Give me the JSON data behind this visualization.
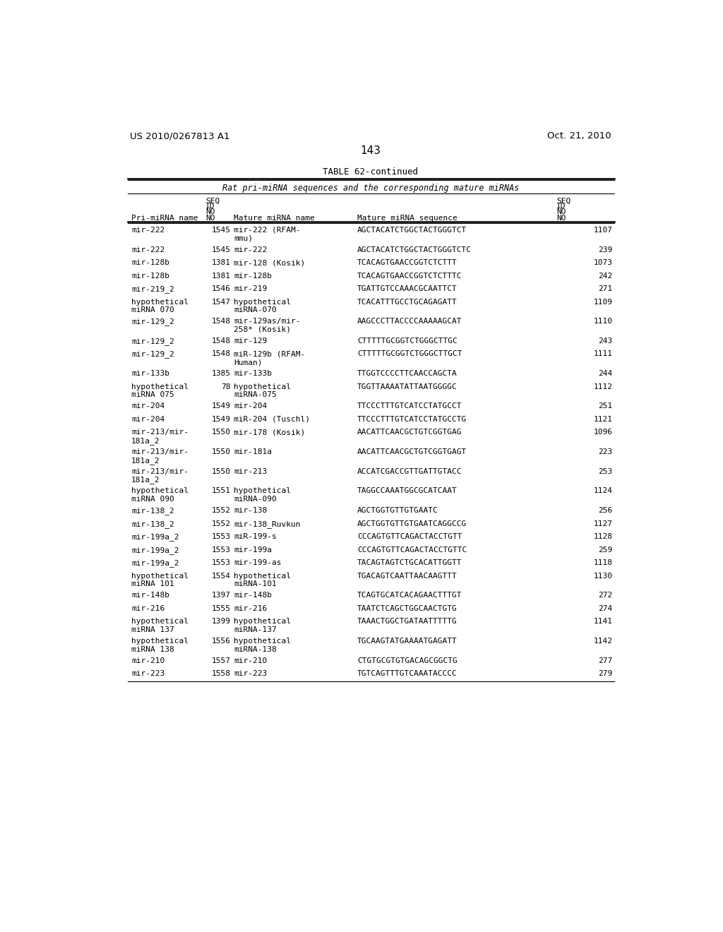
{
  "title_left": "US 2010/0267813 A1",
  "title_right": "Oct. 21, 2010",
  "page_number": "143",
  "table_title": "TABLE 62-continued",
  "table_subtitle": "Rat pri-miRNA sequences and the corresponding mature miRNAs",
  "rows": [
    [
      "mir-222",
      "1545",
      "mir-222 (RFAM-\nmmu)",
      "AGCTACATCTGGCTACTGGGTCT",
      "1107"
    ],
    [
      "mir-222",
      "1545",
      "mir-222",
      "AGCTACATCTGGCTACTGGGTCTC",
      "239"
    ],
    [
      "mir-128b",
      "1381",
      "mir-128 (Kosik)",
      "TCACAGTGAACCGGTCTCTTT",
      "1073"
    ],
    [
      "mir-128b",
      "1381",
      "mir-128b",
      "TCACAGTGAACCGGTCTCTTTC",
      "242"
    ],
    [
      "mir-219_2",
      "1546",
      "mir-219",
      "TGATTGTCCAAACGCAATTCT",
      "271"
    ],
    [
      "hypothetical\nmiRNA 070",
      "1547",
      "hypothetical\nmiRNA-070",
      "TCACATTTGCCTGCAGAGATT",
      "1109"
    ],
    [
      "mir-129_2",
      "1548",
      "mir-129as/mir-\n258* (Kosik)",
      "AAGCCCTTACCCCAAAAAGCAT",
      "1110"
    ],
    [
      "mir-129_2",
      "1548",
      "mir-129",
      "CTTTTTGCGGTCTGGGCTTGC",
      "243"
    ],
    [
      "mir-129_2",
      "1548",
      "miR-129b (RFAM-\nHuman)",
      "CTTTTTGCGGTCTGGGCTTGCT",
      "1111"
    ],
    [
      "mir-133b",
      "1385",
      "mir-133b",
      "TTGGTCCCCTTCAACCAGCTA",
      "244"
    ],
    [
      "hypothetical\nmiRNA 075",
      "78",
      "hypothetical\nmiRNA-075",
      "TGGTTAAAATATTAATGGGGC",
      "1112"
    ],
    [
      "mir-204",
      "1549",
      "mir-204",
      "TTCCCTTTGTCATCCTATGCCT",
      "251"
    ],
    [
      "mir-204",
      "1549",
      "miR-204 (Tuschl)",
      "TTCCCTTTGTCATCCTATGCCTG",
      "1121"
    ],
    [
      "mir-213/mir-\n181a_2",
      "1550",
      "mir-178 (Kosik)",
      "AACATTCAACGCTGTCGGTGAG",
      "1096"
    ],
    [
      "mir-213/mir-\n181a_2",
      "1550",
      "mir-181a",
      "AACATTCAACGCTGTCGGTGAGT",
      "223"
    ],
    [
      "mir-213/mir-\n181a_2",
      "1550",
      "mir-213",
      "ACCATCGACCGTTGATTGTACC",
      "253"
    ],
    [
      "hypothetical\nmiRNA 090",
      "1551",
      "hypothetical\nmiRNA-090",
      "TAGGCCAAATGGCGCATCAAT",
      "1124"
    ],
    [
      "mir-138_2",
      "1552",
      "mir-138",
      "AGCTGGTGTTGTGAATC",
      "256"
    ],
    [
      "mir-138_2",
      "1552",
      "mir-138_Ruvkun",
      "AGCTGGTGTTGTGAATCAGGCCG",
      "1127"
    ],
    [
      "mir-199a_2",
      "1553",
      "miR-199-s",
      "CCCAGTGTTCAGACTACCTGTT",
      "1128"
    ],
    [
      "mir-199a_2",
      "1553",
      "mir-199a",
      "CCCAGTGTTCAGACTACCTGTTC",
      "259"
    ],
    [
      "mir-199a_2",
      "1553",
      "mir-199-as",
      "TACAGTAGTCTGCACATTGGTT",
      "1118"
    ],
    [
      "hypothetical\nmiRNA 101",
      "1554",
      "hypothetical\nmiRNA-101",
      "TGACAGTCAATTAACAAGTTT",
      "1130"
    ],
    [
      "mir-148b",
      "1397",
      "mir-148b",
      "TCAGTGCATCACAGAACTTTGT",
      "272"
    ],
    [
      "mir-216",
      "1555",
      "mir-216",
      "TAATCTCAGCTGGCAACTGTG",
      "274"
    ],
    [
      "hypothetical\nmiRNA 137",
      "1399",
      "hypothetical\nmiRNA-137",
      "TAAACTGGCTGATAATTTTTG",
      "1141"
    ],
    [
      "hypothetical\nmiRNA 138",
      "1556",
      "hypothetical\nmiRNA-138",
      "TGCAAGTATGAAAATGAGATT",
      "1142"
    ],
    [
      "mir-210",
      "1557",
      "mir-210",
      "CTGTGCGTGTGACAGCGGCTG",
      "277"
    ],
    [
      "mir-223",
      "1558",
      "mir-223",
      "TGTCAGTTTGTCAAATACCCC",
      "279"
    ]
  ],
  "background_color": "#ffffff",
  "font_color": "#000000"
}
